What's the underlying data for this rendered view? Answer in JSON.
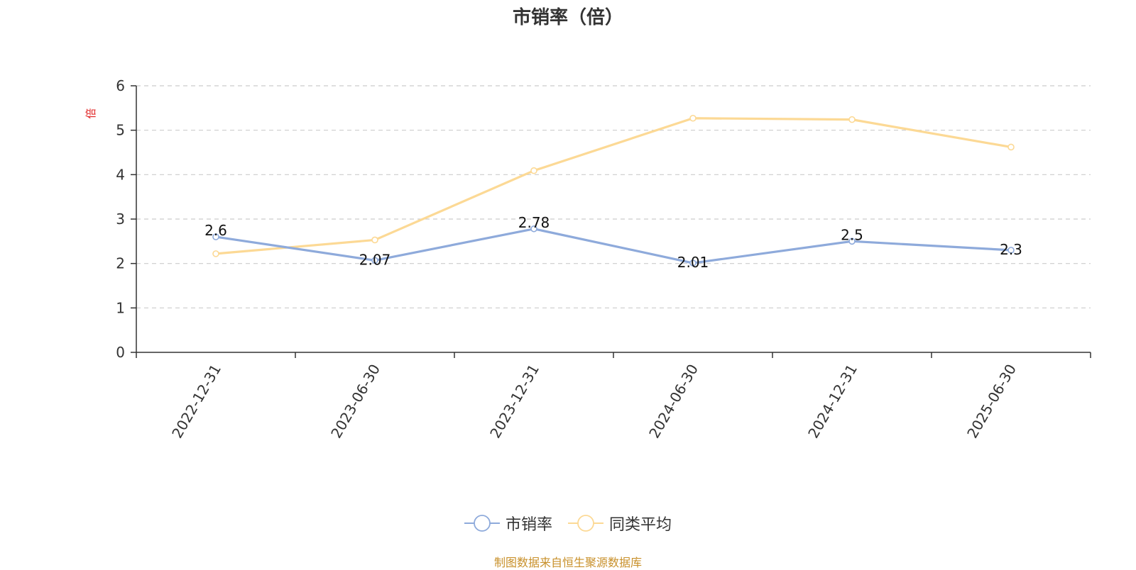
{
  "chart_data": {
    "type": "line",
    "title": "市销率（倍）",
    "ylabel": "倍",
    "xlabel": "",
    "categories": [
      "2022-12-31",
      "2023-06-30",
      "2023-12-31",
      "2024-06-30",
      "2024-12-31",
      "2025-06-30"
    ],
    "ylim": [
      0,
      6
    ],
    "yticks": [
      0,
      1,
      2,
      3,
      4,
      5,
      6
    ],
    "grid": true,
    "legend_position": "bottom-center",
    "series": [
      {
        "name": "市销率",
        "values": [
          2.6,
          2.07,
          2.78,
          2.01,
          2.5,
          2.3
        ],
        "color": "#8eaadb",
        "labels": [
          "2.6",
          "2.07",
          "2.78",
          "2.01",
          "2.5",
          "2.3"
        ]
      },
      {
        "name": "同类平均",
        "values": [
          2.22,
          2.53,
          4.09,
          5.27,
          5.24,
          4.62
        ],
        "color": "#fcd995"
      }
    ]
  },
  "source_note": "制图数据来自恒生聚源数据库",
  "colors": {
    "ylabel": "#e02020",
    "source": "#c8902a"
  }
}
